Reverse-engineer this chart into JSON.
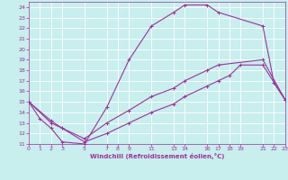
{
  "xlabel": "Windchill (Refroidissement éolien,°C)",
  "background_color": "#c8eeee",
  "line_color": "#993399",
  "xlim": [
    0,
    23
  ],
  "ylim": [
    11,
    24.5
  ],
  "xticks": [
    0,
    1,
    2,
    3,
    5,
    7,
    8,
    9,
    11,
    13,
    14,
    16,
    17,
    18,
    19,
    21,
    22,
    23
  ],
  "yticks": [
    11,
    12,
    13,
    14,
    15,
    16,
    17,
    18,
    19,
    20,
    21,
    22,
    23,
    24
  ],
  "line1_x": [
    0,
    1,
    2,
    3,
    5,
    7,
    9,
    11,
    13,
    14,
    16,
    17,
    21,
    22,
    23
  ],
  "line1_y": [
    15.0,
    13.4,
    12.5,
    11.2,
    11.0,
    14.5,
    19.0,
    22.2,
    23.5,
    24.2,
    24.2,
    23.5,
    22.2,
    16.8,
    15.2
  ],
  "line2_x": [
    0,
    2,
    3,
    5,
    7,
    9,
    11,
    13,
    14,
    16,
    17,
    21,
    23
  ],
  "line2_y": [
    15.0,
    13.2,
    12.5,
    11.5,
    13.0,
    14.2,
    15.5,
    16.3,
    17.0,
    18.0,
    18.5,
    19.0,
    15.2
  ],
  "line3_x": [
    0,
    2,
    3,
    5,
    7,
    9,
    11,
    13,
    14,
    16,
    17,
    18,
    19,
    21,
    23
  ],
  "line3_y": [
    15.0,
    13.0,
    12.5,
    11.2,
    12.0,
    13.0,
    14.0,
    14.8,
    15.5,
    16.5,
    17.0,
    17.5,
    18.5,
    18.5,
    15.2
  ]
}
